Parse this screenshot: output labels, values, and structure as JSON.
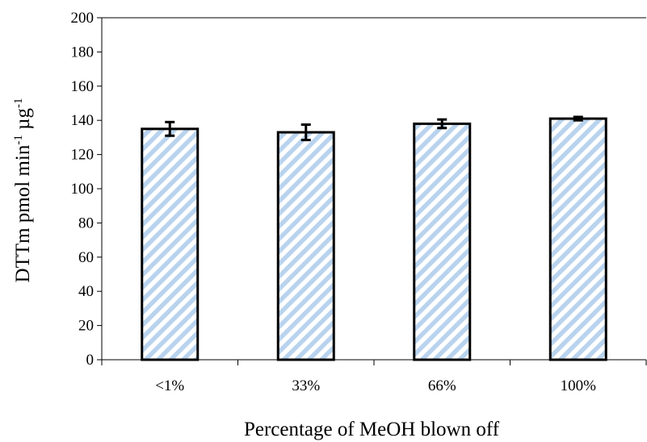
{
  "chart_data": {
    "type": "bar",
    "title": "",
    "xlabel": "Percentage of MeOH blown off",
    "ylabel": {
      "base": "DTTm pmol min",
      "sup1": "-1",
      "mid": " µg",
      "sup2": "-1"
    },
    "categories": [
      "<1%",
      "33%",
      "66%",
      "100%"
    ],
    "values": [
      135,
      133,
      138,
      141
    ],
    "errors": [
      4,
      4.5,
      2.5,
      1
    ],
    "ylim": [
      0,
      200
    ],
    "yticks": [
      0,
      20,
      40,
      60,
      80,
      100,
      120,
      140,
      160,
      180,
      200
    ],
    "grid": false,
    "bar_pattern": "diagonal-stripes",
    "colors": {
      "stripe": "#b9d3ee",
      "bar_border": "#000000",
      "background": "#ffffff"
    }
  }
}
